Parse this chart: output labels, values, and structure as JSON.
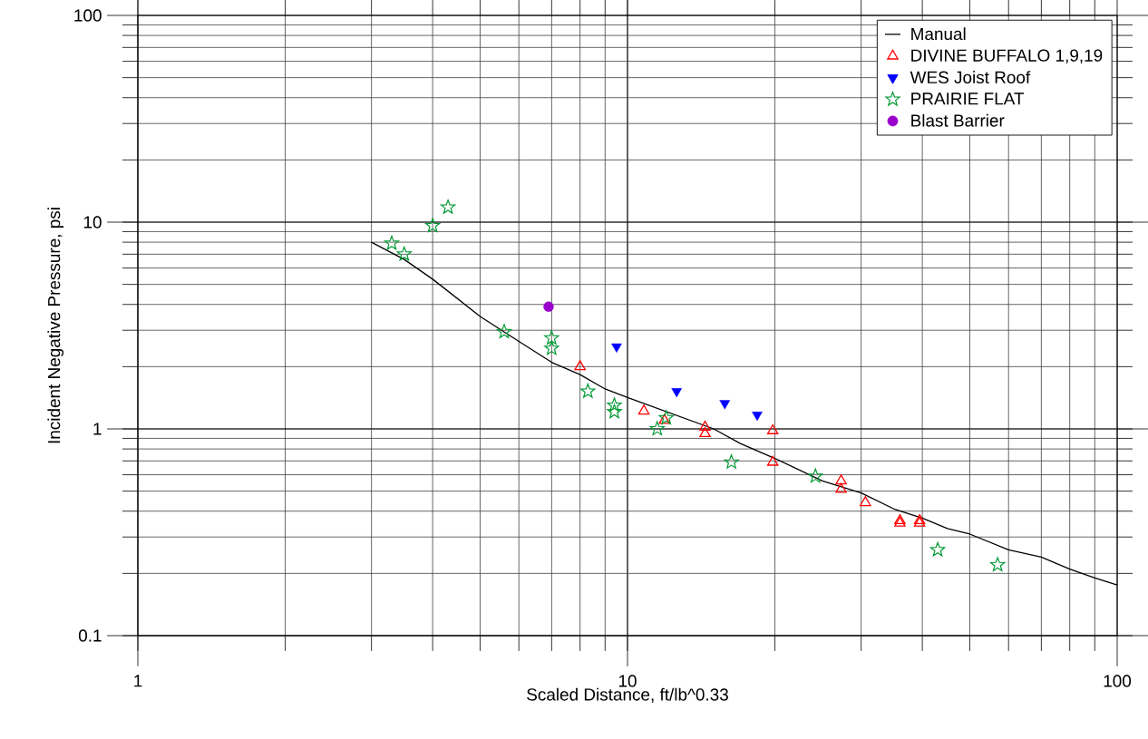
{
  "chart_data": {
    "type": "scatter",
    "xlabel": "Scaled Distance, ft/lb^0.33",
    "ylabel": "Incident Negative Pressure, psi",
    "log": "xy",
    "xlim": [
      1,
      100
    ],
    "ylim": [
      0.1,
      100
    ],
    "xticks": [
      1,
      10,
      100
    ],
    "yticks": [
      0.1,
      1,
      10,
      100
    ],
    "grid": true,
    "legend": "top right",
    "series": [
      {
        "name": "Manual",
        "type": "line",
        "marker": "none",
        "line_style": "solid",
        "color": "#000000",
        "x": [
          3,
          3.5,
          4,
          5,
          6,
          7,
          8,
          9,
          10,
          15,
          17,
          20,
          25,
          30,
          35,
          40,
          45,
          50,
          60,
          70,
          80,
          90,
          100
        ],
        "values": [
          8.0,
          6.6,
          5.3,
          3.5,
          2.65,
          2.1,
          1.83,
          1.56,
          1.42,
          1.0,
          0.85,
          0.72,
          0.56,
          0.49,
          0.41,
          0.37,
          0.33,
          0.31,
          0.26,
          0.24,
          0.21,
          0.19,
          0.176
        ]
      },
      {
        "name": "DIVINE BUFFALO 1,9,19",
        "marker": "triangle",
        "color": "#ff0000",
        "x": [
          8,
          10.8,
          11.9,
          14.4,
          14.4,
          19.8,
          19.8,
          27.3,
          27.3,
          30.6,
          36,
          36,
          39.5,
          39.5
        ],
        "values": [
          2.0,
          1.22,
          1.1,
          1.02,
          0.95,
          0.98,
          0.69,
          0.56,
          0.51,
          0.44,
          0.36,
          0.35,
          0.36,
          0.35
        ]
      },
      {
        "name": "WES Joist Roof",
        "marker": "triangle-down",
        "color": "#0000ff",
        "x": [
          9.5,
          12.6,
          15.8,
          18.4
        ],
        "values": [
          2.5,
          1.52,
          1.33,
          1.17
        ]
      },
      {
        "name": "PRAIRIE FLAT",
        "marker": "star",
        "color": "#009933",
        "x": [
          3.3,
          3.5,
          4,
          4.3,
          5.6,
          7,
          7,
          8.3,
          9.4,
          9.4,
          11.5,
          12,
          16.3,
          24.2,
          43,
          57
        ],
        "values": [
          7.9,
          7.0,
          9.6,
          11.8,
          2.95,
          2.75,
          2.45,
          1.52,
          1.3,
          1.21,
          1.0,
          1.13,
          0.69,
          0.59,
          0.26,
          0.22
        ]
      },
      {
        "name": "Blast Barrier",
        "marker": "circle",
        "color": "#9900cc",
        "x": [
          6.9
        ],
        "values": [
          3.9
        ]
      }
    ]
  }
}
